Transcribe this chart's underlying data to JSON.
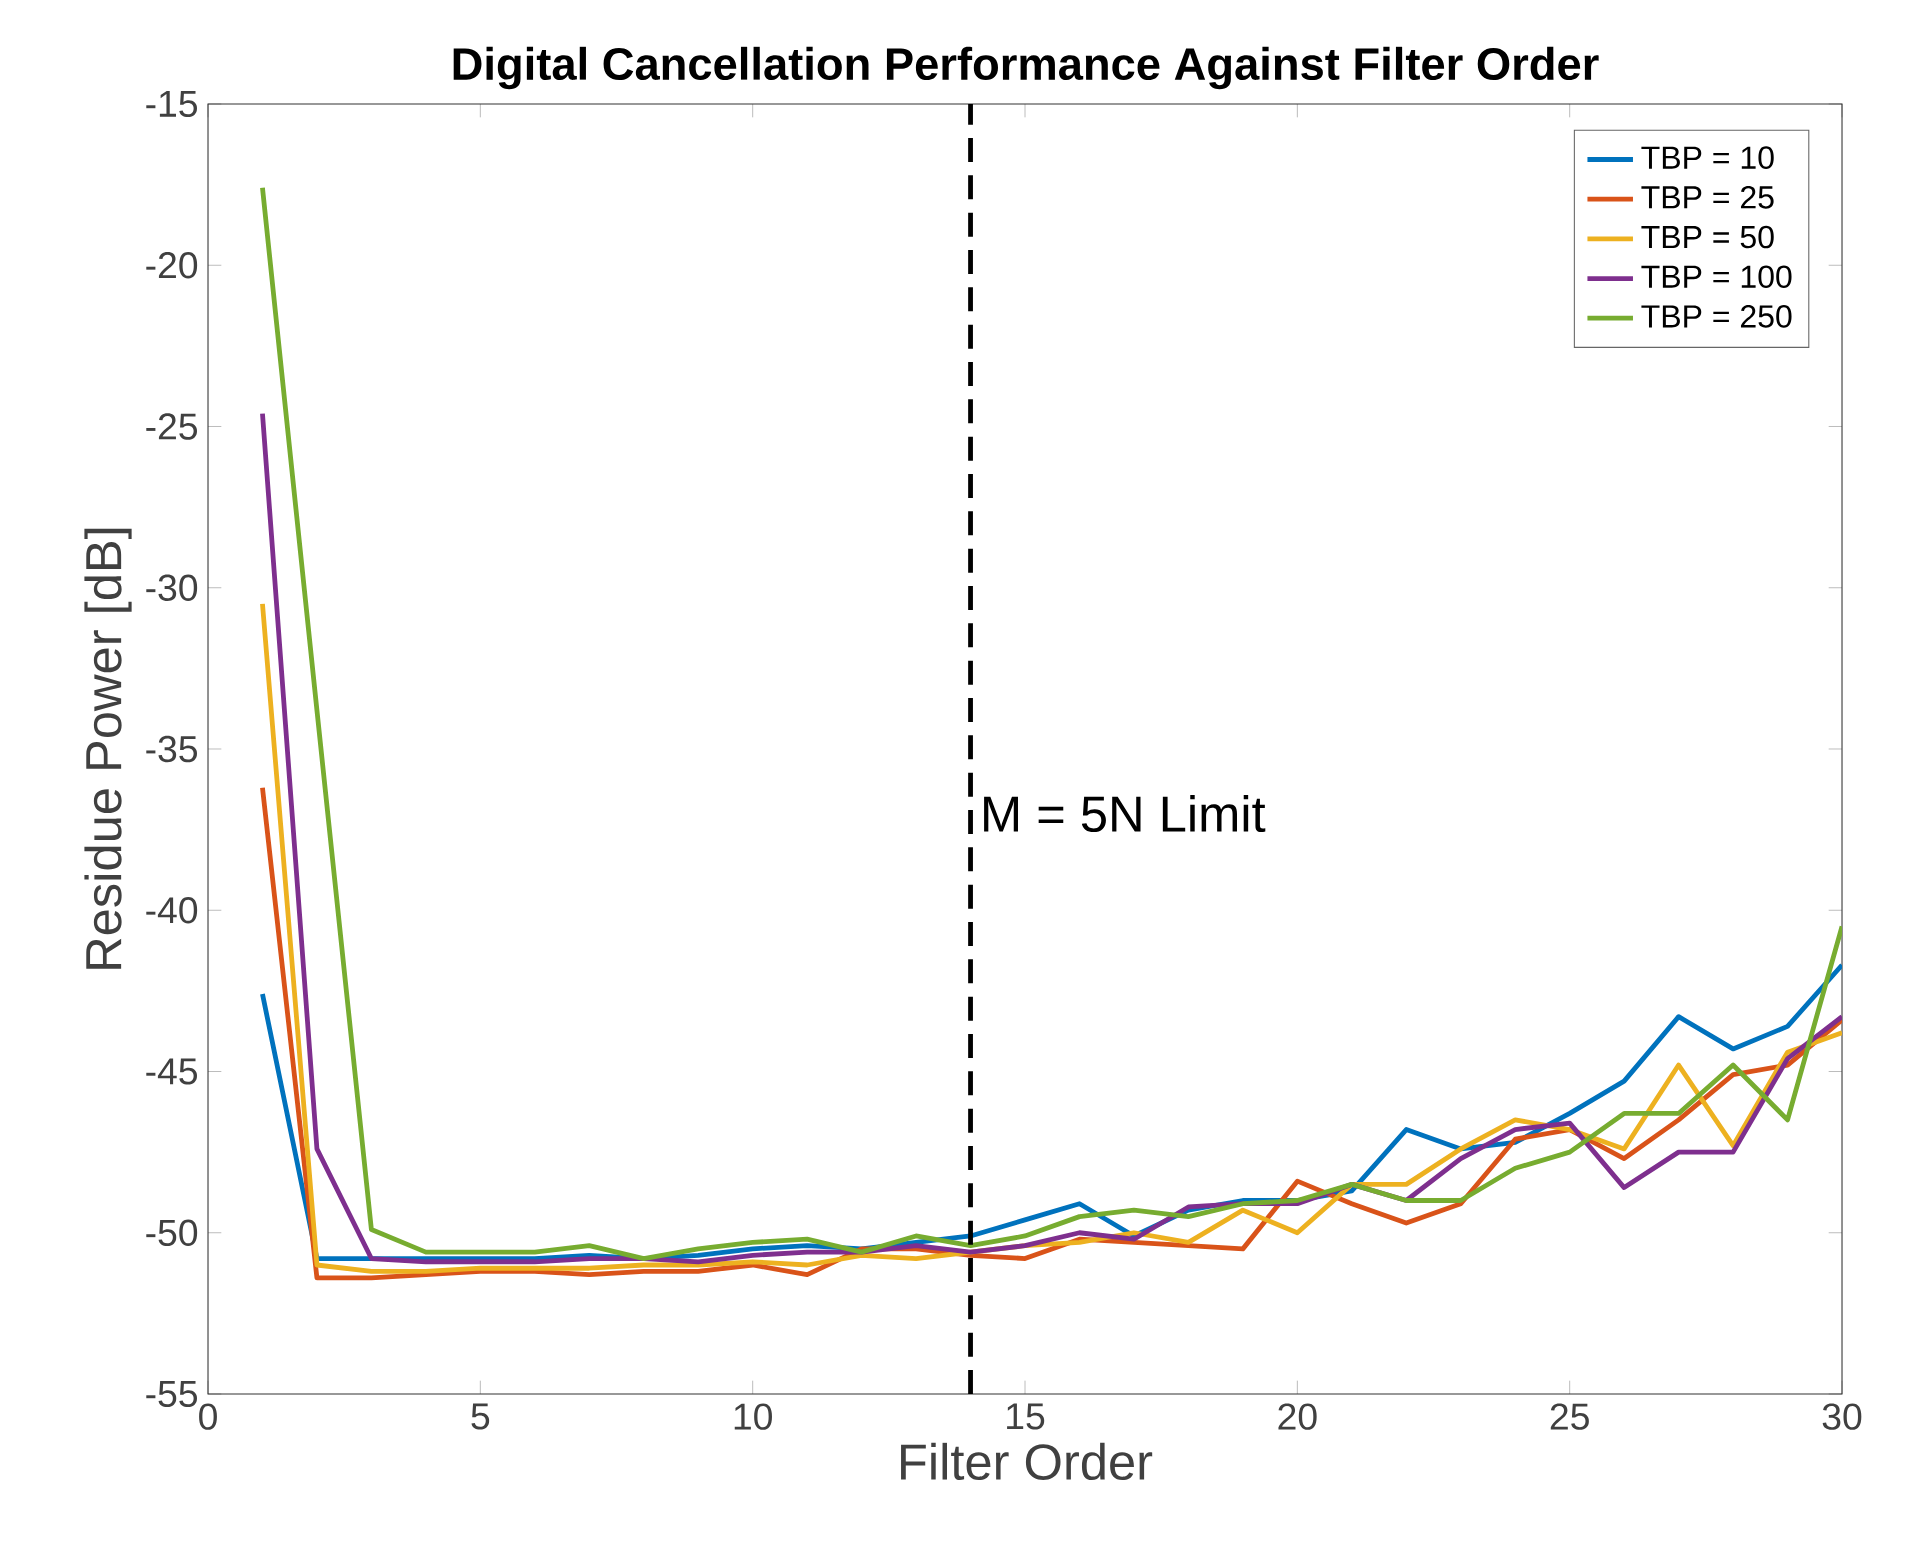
{
  "chart_data": {
    "type": "line",
    "title": "Digital Cancellation Performance Against Filter Order",
    "xlabel": "Filter Order",
    "ylabel": "Residue Power [dB]",
    "x": [
      1,
      2,
      3,
      4,
      5,
      6,
      7,
      8,
      9,
      10,
      11,
      12,
      13,
      14,
      15,
      16,
      17,
      18,
      19,
      20,
      21,
      22,
      23,
      24,
      25,
      26,
      27,
      28,
      29,
      30
    ],
    "series": [
      {
        "name": "TBP = 10",
        "color": "#0072bd",
        "values": [
          -42.6,
          -50.8,
          -50.8,
          -50.8,
          -50.8,
          -50.8,
          -50.7,
          -50.8,
          -50.7,
          -50.5,
          -50.4,
          -50.5,
          -50.3,
          -50.1,
          -49.6,
          -49.1,
          -50.1,
          -49.3,
          -49.0,
          -49.0,
          -48.7,
          -46.8,
          -47.4,
          -47.2,
          -46.3,
          -45.3,
          -43.3,
          -44.3,
          -43.6,
          -41.7
        ]
      },
      {
        "name": "TBP = 25",
        "color": "#d95319",
        "values": [
          -36.2,
          -51.4,
          -51.4,
          -51.3,
          -51.2,
          -51.2,
          -51.3,
          -51.2,
          -51.2,
          -51.0,
          -51.3,
          -50.5,
          -50.5,
          -50.7,
          -50.8,
          -50.2,
          -50.3,
          -50.4,
          -50.5,
          -48.4,
          -49.1,
          -49.7,
          -49.1,
          -47.1,
          -46.8,
          -47.7,
          -46.5,
          -45.1,
          -44.8,
          -43.4
        ]
      },
      {
        "name": "TBP = 50",
        "color": "#edb120",
        "values": [
          -30.5,
          -51.0,
          -51.2,
          -51.2,
          -51.1,
          -51.1,
          -51.1,
          -51.0,
          -51.0,
          -50.9,
          -51.0,
          -50.7,
          -50.8,
          -50.6,
          -50.4,
          -50.3,
          -50.0,
          -50.3,
          -49.3,
          -50.0,
          -48.5,
          -48.5,
          -47.4,
          -46.5,
          -46.8,
          -47.4,
          -44.8,
          -47.3,
          -44.4,
          -43.8
        ]
      },
      {
        "name": "TBP = 100",
        "color": "#7e2f8e",
        "values": [
          -24.6,
          -47.4,
          -50.8,
          -50.9,
          -50.9,
          -50.9,
          -50.8,
          -50.8,
          -50.9,
          -50.7,
          -50.6,
          -50.6,
          -50.4,
          -50.6,
          -50.4,
          -50.0,
          -50.2,
          -49.2,
          -49.1,
          -49.1,
          -48.5,
          -49.0,
          -47.7,
          -46.8,
          -46.6,
          -48.6,
          -47.5,
          -47.5,
          -44.6,
          -43.3
        ]
      },
      {
        "name": "TBP = 250",
        "color": "#77ac30",
        "values": [
          -17.6,
          -33.8,
          -49.9,
          -50.6,
          -50.6,
          -50.6,
          -50.4,
          -50.8,
          -50.5,
          -50.3,
          -50.2,
          -50.6,
          -50.1,
          -50.4,
          -50.1,
          -49.5,
          -49.3,
          -49.5,
          -49.1,
          -49.0,
          -48.5,
          -49.0,
          -49.0,
          -48.0,
          -47.5,
          -46.3,
          -46.3,
          -44.8,
          -46.5,
          -40.5
        ]
      }
    ],
    "xlim": [
      0,
      30
    ],
    "ylim": [
      -55,
      -15
    ],
    "xticks": [
      0,
      5,
      10,
      15,
      20,
      25,
      30
    ],
    "yticks": [
      -55,
      -50,
      -45,
      -40,
      -35,
      -30,
      -25,
      -20,
      -15
    ],
    "ref_lines": [
      {
        "axis": "x",
        "value": 14,
        "color": "#000000",
        "line_style": "dashed"
      }
    ],
    "annotations": [
      {
        "text": "M = 5N Limit",
        "x": 14,
        "y": -37
      }
    ],
    "legend": "top right",
    "grid": false,
    "marker": "none",
    "line_style": "solid"
  }
}
